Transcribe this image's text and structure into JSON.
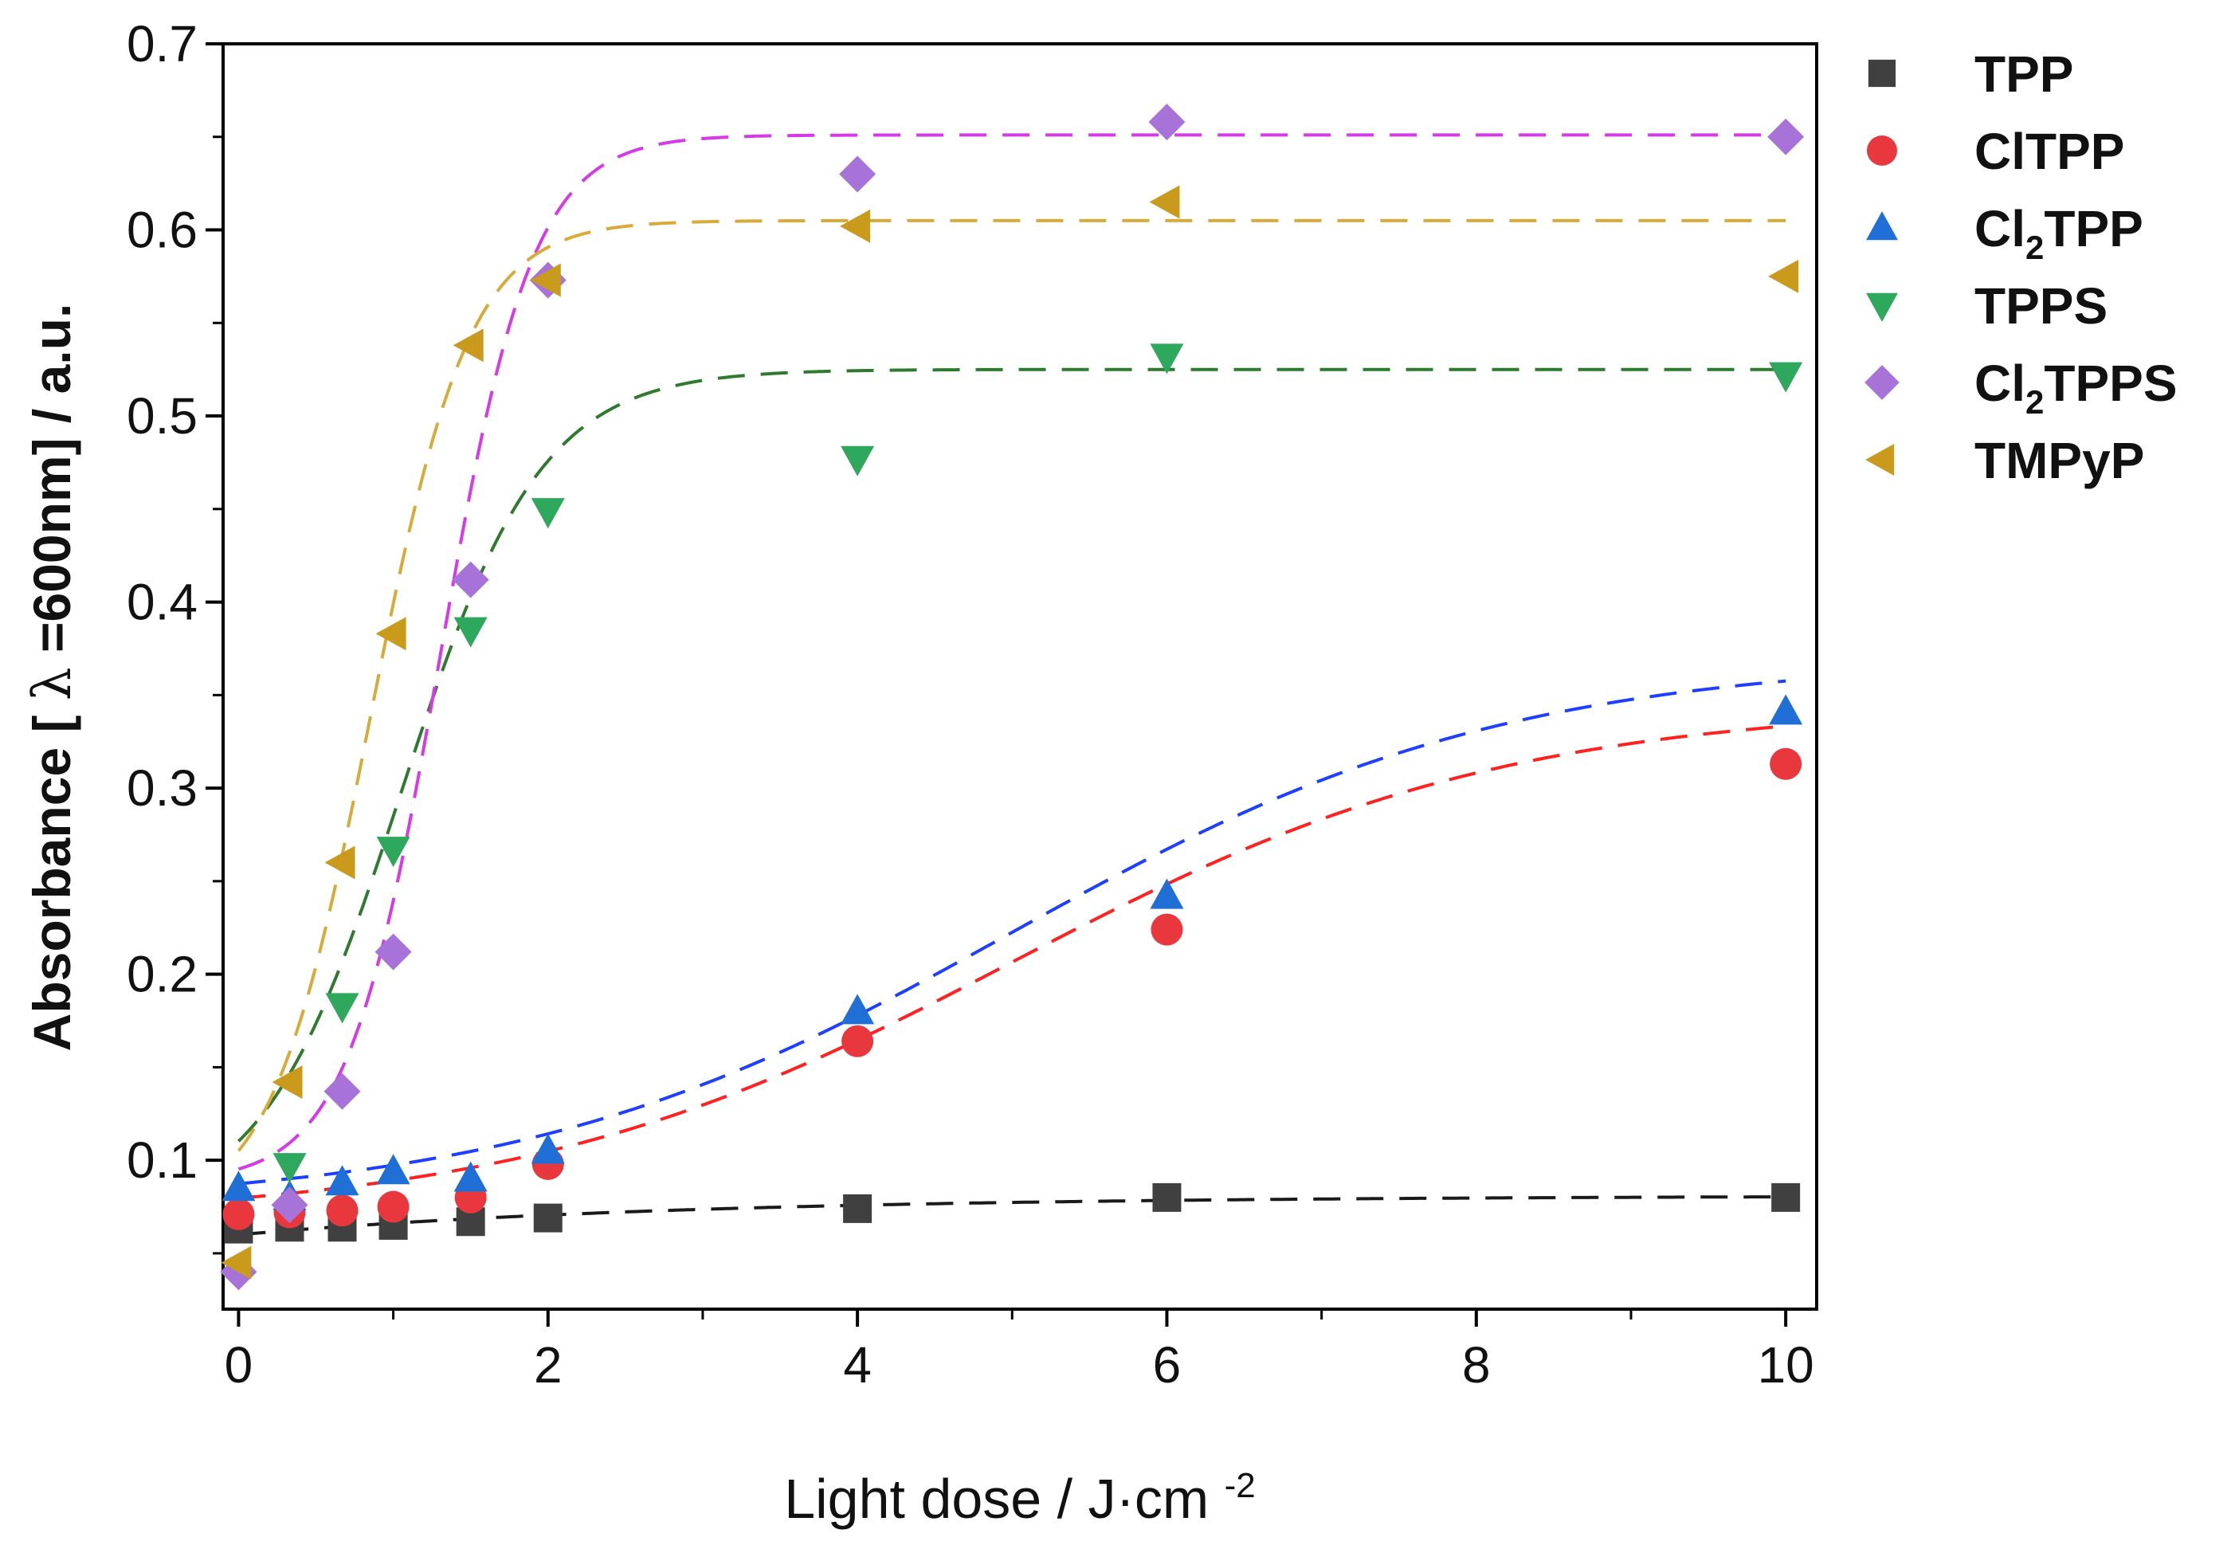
{
  "chart_data": {
    "type": "scatter",
    "title": "",
    "xlabel": "Light dose / J·cm",
    "xlabel_sup": "-2",
    "ylabel_parts": [
      "Absorbance [",
      "λ",
      "=600nm] / a.u."
    ],
    "xlim": [
      -0.1,
      10.2
    ],
    "ylim": [
      0.02,
      0.7
    ],
    "x_ticks": [
      0,
      2,
      4,
      6,
      8,
      10
    ],
    "x_tick_labels": [
      "0",
      "2",
      "4",
      "6",
      "8",
      "10"
    ],
    "y_ticks": [
      0.1,
      0.2,
      0.3,
      0.4,
      0.5,
      0.6,
      0.7
    ],
    "y_tick_labels": [
      "0.1",
      "0.2",
      "0.3",
      "0.4",
      "0.5",
      "0.6",
      "0.7"
    ],
    "legend_position": "outside-right",
    "series": [
      {
        "name": "TPP",
        "label_parts": [
          "TPP"
        ],
        "marker": "square",
        "color": "#404040",
        "fit_color": "#1a1a1a",
        "x": [
          0,
          0.33,
          0.67,
          1,
          1.5,
          2,
          4,
          6,
          10
        ],
        "y": [
          0.063,
          0.064,
          0.064,
          0.065,
          0.067,
          0.069,
          0.074,
          0.08,
          0.08
        ],
        "fit": {
          "model": "linear-plateau",
          "y0": 0.06,
          "y1": 0.081,
          "k": 0.35,
          "x0": 0
        }
      },
      {
        "name": "ClTPP",
        "label_parts": [
          "ClTPP"
        ],
        "marker": "circle",
        "color": "#e8383d",
        "fit_color": "#ff2020",
        "x": [
          0,
          0.33,
          0.67,
          1,
          1.5,
          2,
          4,
          6,
          10
        ],
        "y": [
          0.071,
          0.072,
          0.073,
          0.075,
          0.08,
          0.098,
          0.164,
          0.224,
          0.313
        ],
        "fit": {
          "model": "sigmoid",
          "A1": 0.068,
          "A2": 0.345,
          "x0": 5.0,
          "dx": 1.6
        }
      },
      {
        "name": "Cl2TPP",
        "label_parts": [
          "Cl",
          "2",
          "TPP"
        ],
        "marker": "triangle-up",
        "color": "#1f6fd6",
        "fit_color": "#1f3fff",
        "x": [
          0,
          0.33,
          0.67,
          1,
          1.5,
          2,
          4,
          6,
          10
        ],
        "y": [
          0.085,
          0.08,
          0.088,
          0.094,
          0.09,
          0.105,
          0.18,
          0.242,
          0.341
        ],
        "fit": {
          "model": "sigmoid",
          "A1": 0.075,
          "A2": 0.37,
          "x0": 5.0,
          "dx": 1.6
        }
      },
      {
        "name": "TPPS",
        "label_parts": [
          "TPPS"
        ],
        "marker": "triangle-down",
        "color": "#2ea85c",
        "fit_color": "#2f7a2f",
        "x": [
          0.33,
          0.67,
          1,
          1.5,
          2,
          4,
          6,
          10
        ],
        "y": [
          0.097,
          0.183,
          0.267,
          0.385,
          0.449,
          0.477,
          0.532,
          0.522
        ],
        "fit": {
          "model": "sigmoid",
          "A1": 0.07,
          "A2": 0.525,
          "x0": 1.05,
          "dx": 0.45
        }
      },
      {
        "name": "Cl2TPPS",
        "label_parts": [
          "Cl",
          "2",
          "TPPS"
        ],
        "marker": "diamond",
        "color": "#a873d8",
        "fit_color": "#d63ae8",
        "x": [
          0,
          0.33,
          0.67,
          1,
          1.5,
          2,
          4,
          6,
          10
        ],
        "y": [
          0.04,
          0.076,
          0.137,
          0.212,
          0.412,
          0.573,
          0.63,
          0.658,
          0.65
        ],
        "fit": {
          "model": "sigmoid",
          "A1": 0.088,
          "A2": 0.651,
          "x0": 1.3,
          "dx": 0.3
        }
      },
      {
        "name": "TMPyP",
        "label_parts": [
          "TMPyP"
        ],
        "marker": "triangle-left",
        "color": "#c99a1c",
        "fit_color": "#d8aa3a",
        "x": [
          0,
          0.33,
          0.67,
          1,
          1.5,
          2,
          4,
          6,
          10
        ],
        "y": [
          0.045,
          0.142,
          0.26,
          0.383,
          0.538,
          0.573,
          0.602,
          0.615,
          0.575
        ],
        "fit": {
          "model": "sigmoid",
          "A1": 0.07,
          "A2": 0.605,
          "x0": 0.85,
          "dx": 0.32
        }
      }
    ]
  }
}
